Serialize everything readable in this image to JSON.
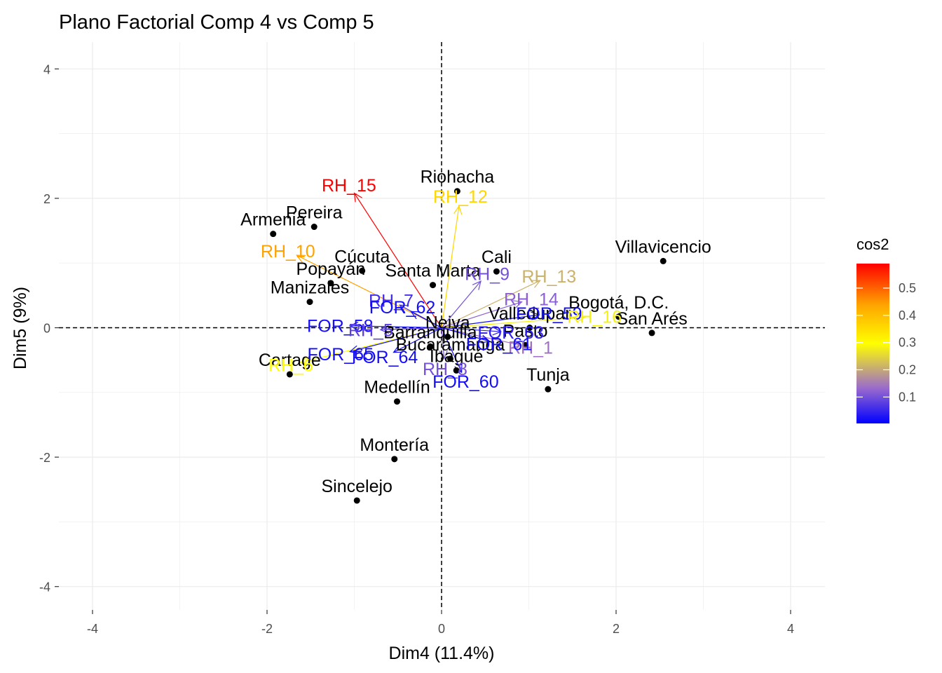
{
  "chart_data": {
    "type": "scatter",
    "title": "Plano Factorial Comp 4 vs Comp 5",
    "xlabel": "Dim4 (11.4%)",
    "ylabel": "Dim5 (9%)",
    "xlim": [
      -4.4,
      4.4
    ],
    "ylim": [
      -4.3,
      4.4
    ],
    "x_ticks": [
      -4,
      -2,
      0,
      2,
      4
    ],
    "y_ticks": [
      -4,
      -2,
      0,
      2,
      4
    ],
    "grid": true,
    "reference_lines": {
      "x": 0,
      "y": 0,
      "style": "dashed"
    },
    "legend": {
      "title": "cos2",
      "placement": "right",
      "ticks": [
        0.1,
        0.2,
        0.3,
        0.4,
        0.5
      ],
      "range": [
        0.003,
        0.59
      ],
      "colors": [
        "#0000FF",
        "#9A6ACD",
        "#FFFF00",
        "#FFA500",
        "#FF0000"
      ]
    },
    "individuals": [
      {
        "name": "Riohacha",
        "x": 0.18,
        "y": 2.11
      },
      {
        "name": "Pereira",
        "x": -1.46,
        "y": 1.56
      },
      {
        "name": "Armenia",
        "x": -1.93,
        "y": 1.45
      },
      {
        "name": "Cúcuta",
        "x": -0.91,
        "y": 0.88
      },
      {
        "name": "Cali",
        "x": 0.63,
        "y": 0.87
      },
      {
        "name": "Villavicencio",
        "x": 2.54,
        "y": 1.03
      },
      {
        "name": "Valledupar",
        "x": 1.01,
        "y": 0.0
      },
      {
        "name": "Manizales",
        "x": -1.51,
        "y": 0.4
      },
      {
        "name": "Popayán",
        "x": -1.27,
        "y": 0.69
      },
      {
        "name": "Santa Marta",
        "x": -0.1,
        "y": 0.66
      },
      {
        "name": "Bogotá, D.C.",
        "x": 2.03,
        "y": 0.17
      },
      {
        "name": "San Arés",
        "x": 2.41,
        "y": -0.08
      },
      {
        "name": "Neiva",
        "x": 0.07,
        "y": -0.14
      },
      {
        "name": "Barranquilla",
        "x": -0.13,
        "y": -0.29
      },
      {
        "name": "Pasto",
        "x": 0.96,
        "y": -0.27
      },
      {
        "name": "Bucaramanga",
        "x": 0.1,
        "y": -0.48
      },
      {
        "name": "Ibagué",
        "x": 0.17,
        "y": -0.66
      },
      {
        "name": "Cartage",
        "x": -1.74,
        "y": -0.72
      },
      {
        "name": "Tunja",
        "x": 1.22,
        "y": -0.95
      },
      {
        "name": "Medellín",
        "x": -0.51,
        "y": -1.14
      },
      {
        "name": "Montería",
        "x": -0.54,
        "y": -2.03
      },
      {
        "name": "Sincelejo",
        "x": -0.97,
        "y": -2.67
      }
    ],
    "variables": [
      {
        "name": "RH_15",
        "x": -1.0,
        "y": 2.08,
        "cos2": 0.59
      },
      {
        "name": "RH_12",
        "x": 0.2,
        "y": 1.88,
        "cos2": 0.36
      },
      {
        "name": "RH_10",
        "x": -1.66,
        "y": 1.12,
        "cos2": 0.44
      },
      {
        "name": "RH_9",
        "x": 0.45,
        "y": 0.72,
        "cos2": 0.1
      },
      {
        "name": "RH_13",
        "x": 1.13,
        "y": 0.73,
        "cos2": 0.21
      },
      {
        "name": "RH_14",
        "x": 0.92,
        "y": 0.4,
        "cos2": 0.12
      },
      {
        "name": "RH_7",
        "x": -0.48,
        "y": 0.35,
        "cos2": 0.06
      },
      {
        "name": "FOR_62",
        "x": -0.35,
        "y": 0.25,
        "cos2": 0.02
      },
      {
        "name": "FOR_59",
        "x": 1.12,
        "y": 0.2,
        "cos2": 0.02
      },
      {
        "name": "RH_16",
        "x": 1.64,
        "y": 0.16,
        "cos2": 0.28
      },
      {
        "name": "FOR_58",
        "x": -1.05,
        "y": 0.03,
        "cos2": 0.02
      },
      {
        "name": "RH_5",
        "x": -0.7,
        "y": -0.03,
        "cos2": 0.08
      },
      {
        "name": "FOR_63",
        "x": 0.68,
        "y": -0.06,
        "cos2": 0.04
      },
      {
        "name": "RH_6",
        "x": -1.62,
        "y": -0.54,
        "cos2": 0.3
      },
      {
        "name": "FOR_65",
        "x": -1.05,
        "y": -0.37,
        "cos2": 0.02
      },
      {
        "name": "FOR_64",
        "x": -0.55,
        "y": -0.38,
        "cos2": 0.02
      },
      {
        "name": "RH_8",
        "x": 0.03,
        "y": -0.48,
        "cos2": 0.1
      },
      {
        "name": "RH_1",
        "x": 0.91,
        "y": -0.27,
        "cos2": 0.14
      },
      {
        "name": "FOR_61",
        "x": 0.55,
        "y": -0.21,
        "cos2": 0.02
      },
      {
        "name": "FOR_60",
        "x": 0.23,
        "y": -0.69,
        "cos2": 0.02
      }
    ]
  }
}
